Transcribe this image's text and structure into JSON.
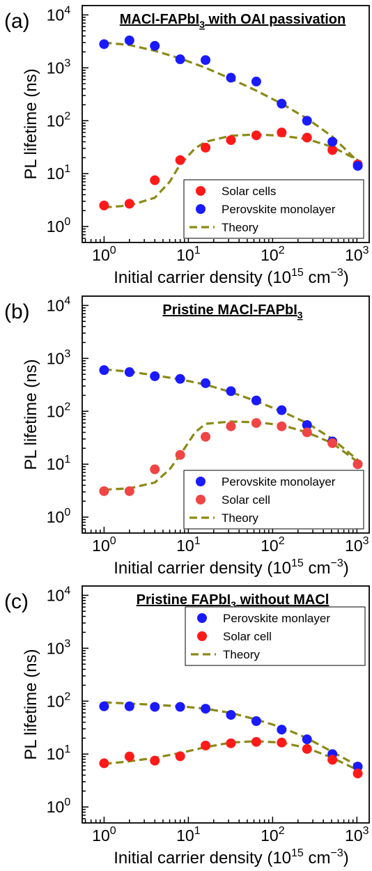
{
  "chart_data": [
    {
      "type": "scatter",
      "panel_label": "(a)",
      "title": "MACl-FAPbI",
      "title_sub": "3",
      "title_rest": " with OAI passivation",
      "xlabel": "Initial carrier density (10",
      "xlabel_sup1": "15",
      "xlabel_mid": " cm",
      "xlabel_sup2": "−3",
      "xlabel_end": ")",
      "ylabel": "PL lifetime (ns)",
      "xscale": "log",
      "yscale": "log",
      "xlim": [
        0.55,
        1400
      ],
      "ylim": [
        0.5,
        15000
      ],
      "x_ticks": [
        1,
        10,
        100,
        1000
      ],
      "y_ticks": [
        1,
        10,
        100,
        1000,
        10000
      ],
      "legend_loc": "lower-right",
      "legend_order": [
        "Solar cells",
        "Perovskite monolayer",
        "Theory"
      ],
      "series": [
        {
          "name": "Solar cells",
          "kind": "points",
          "color": "#ff1a1a",
          "x": [
            1,
            2,
            4,
            8,
            16,
            32,
            64,
            128,
            256,
            512,
            1024
          ],
          "y": [
            2.5,
            2.7,
            7.5,
            18,
            31,
            43,
            53,
            60,
            48,
            28,
            15
          ]
        },
        {
          "name": "Perovskite monolayer",
          "kind": "points",
          "color": "#1a1aff",
          "x": [
            1,
            2,
            4,
            8,
            16,
            32,
            64,
            128,
            256,
            512,
            1024
          ],
          "y": [
            2800,
            3300,
            2600,
            1450,
            1400,
            650,
            550,
            210,
            100,
            40,
            14
          ]
        },
        {
          "name": "Theory",
          "kind": "line",
          "color": "#8a8a16",
          "x": [
            1,
            2,
            4,
            8,
            16,
            32,
            64,
            128,
            256,
            512,
            1024
          ],
          "y": [
            3000,
            2700,
            2100,
            1500,
            1000,
            620,
            370,
            210,
            110,
            50,
            17
          ]
        },
        {
          "name": "Theory",
          "kind": "line",
          "color": "#8a8a16",
          "nolegend": true,
          "x": [
            1,
            2,
            4,
            6,
            8,
            12,
            16,
            32,
            64,
            128,
            256,
            512,
            1024
          ],
          "y": [
            2.3,
            2.5,
            3.5,
            7,
            15,
            30,
            40,
            52,
            55,
            52,
            45,
            32,
            18
          ]
        }
      ]
    },
    {
      "type": "scatter",
      "panel_label": "(b)",
      "title": "Pristine MACl-FAPbI",
      "title_sub": "3",
      "title_rest": "",
      "xlabel": "Initial carrier density (10",
      "xlabel_sup1": "15",
      "xlabel_mid": " cm",
      "xlabel_sup2": "−3",
      "xlabel_end": ")",
      "ylabel": "PL lifetime (ns)",
      "xscale": "log",
      "yscale": "log",
      "xlim": [
        0.55,
        1400
      ],
      "ylim": [
        0.5,
        15000
      ],
      "x_ticks": [
        1,
        10,
        100,
        1000
      ],
      "y_ticks": [
        1,
        10,
        100,
        1000,
        10000
      ],
      "legend_loc": "lower-right",
      "legend_order": [
        "Perovskite monolayer",
        "Solar cell",
        "Theory"
      ],
      "series": [
        {
          "name": "Perovskite monolayer",
          "kind": "points",
          "color": "#1a1aff",
          "x": [
            1,
            2,
            4,
            8,
            16,
            32,
            64,
            128,
            256,
            512,
            1024
          ],
          "y": [
            600,
            550,
            460,
            410,
            340,
            240,
            160,
            105,
            55,
            27,
            10
          ]
        },
        {
          "name": "Solar cell",
          "kind": "points",
          "color": "#f04545",
          "x": [
            1,
            2,
            4,
            8,
            16,
            32,
            64,
            128,
            256,
            512,
            1024
          ],
          "y": [
            3.1,
            3.1,
            8,
            15,
            33,
            52,
            60,
            52,
            40,
            25,
            10
          ]
        },
        {
          "name": "Theory",
          "kind": "line",
          "color": "#8a8a16",
          "x": [
            1,
            2,
            4,
            8,
            16,
            32,
            64,
            128,
            256,
            512,
            1024
          ],
          "y": [
            620,
            560,
            480,
            400,
            320,
            230,
            155,
            100,
            60,
            30,
            12
          ]
        },
        {
          "name": "Theory",
          "kind": "line",
          "color": "#8a8a16",
          "nolegend": true,
          "x": [
            1,
            2,
            4,
            6,
            8,
            12,
            16,
            32,
            64,
            128,
            256,
            512,
            1024
          ],
          "y": [
            3.3,
            3.5,
            4.5,
            8,
            15,
            40,
            58,
            64,
            62,
            55,
            40,
            25,
            11
          ]
        }
      ]
    },
    {
      "type": "scatter",
      "panel_label": "(c)",
      "title": "Pristine FAPbI",
      "title_sub": "3",
      "title_rest": " without MACl",
      "xlabel": "Initial carrier density (10",
      "xlabel_sup1": "15",
      "xlabel_mid": " cm",
      "xlabel_sup2": "−3",
      "xlabel_end": ")",
      "ylabel": "PL lifetime (ns)",
      "xscale": "log",
      "yscale": "log",
      "xlim": [
        0.55,
        1400
      ],
      "ylim": [
        0.5,
        15000
      ],
      "x_ticks": [
        1,
        10,
        100,
        1000
      ],
      "y_ticks": [
        1,
        10,
        100,
        1000,
        10000
      ],
      "legend_loc": "top-right",
      "legend_order": [
        "Perovskite monlayer",
        "Solar cell",
        "Theory"
      ],
      "series": [
        {
          "name": "Perovskite monlayer",
          "kind": "points",
          "color": "#1a1aff",
          "x": [
            1,
            2,
            4,
            8,
            16,
            32,
            64,
            128,
            256,
            512,
            1024
          ],
          "y": [
            80,
            80,
            78,
            78,
            72,
            55,
            42,
            29,
            19,
            10,
            5.8
          ]
        },
        {
          "name": "Solar cell",
          "kind": "points",
          "color": "#ff1a1a",
          "x": [
            1,
            2,
            4,
            8,
            16,
            32,
            64,
            128,
            256,
            512,
            1024
          ],
          "y": [
            6.7,
            9,
            7.5,
            9.1,
            14.5,
            16,
            17,
            16.5,
            12.5,
            7.8,
            4.3
          ]
        },
        {
          "name": "Theory",
          "kind": "line",
          "color": "#8a8a16",
          "x": [
            1,
            2,
            4,
            8,
            16,
            32,
            64,
            128,
            256,
            512,
            1024
          ],
          "y": [
            95,
            90,
            85,
            80,
            72,
            60,
            45,
            32,
            20,
            11,
            6
          ]
        },
        {
          "name": "Theory",
          "kind": "line",
          "color": "#8a8a16",
          "nolegend": true,
          "x": [
            1,
            2,
            4,
            8,
            16,
            32,
            64,
            128,
            256,
            512,
            1024
          ],
          "y": [
            6.5,
            7.3,
            8.5,
            10.5,
            13.5,
            16.5,
            17.5,
            16.5,
            13,
            8.5,
            5
          ]
        }
      ]
    }
  ]
}
